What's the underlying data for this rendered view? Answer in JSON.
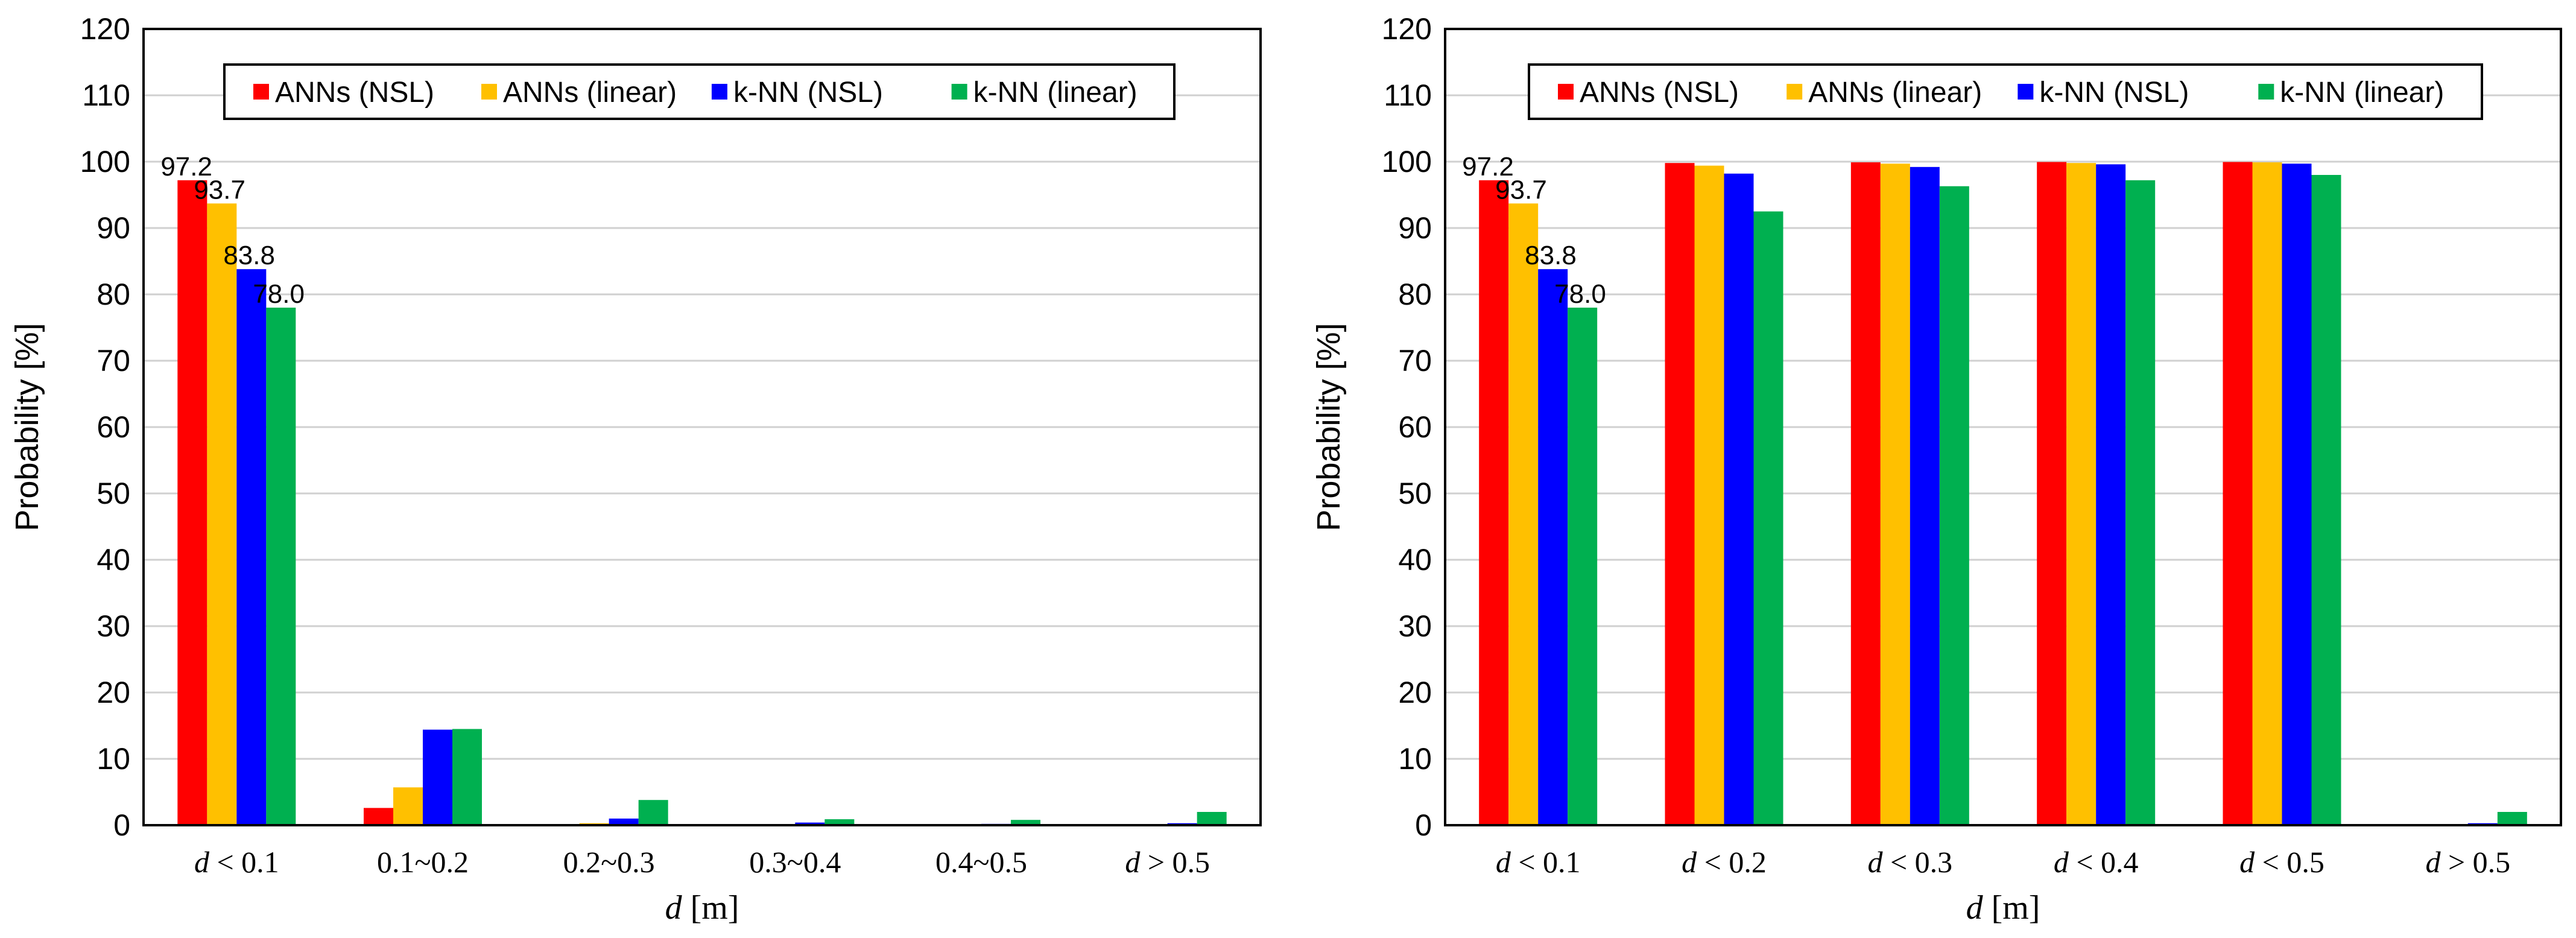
{
  "chart_data": [
    {
      "type": "bar",
      "title": "",
      "ylabel": "Probability [%]",
      "xlabel_var": "d",
      "xlabel_unit": " [m]",
      "ylim": [
        0,
        120
      ],
      "ytick_step": 10,
      "grid": true,
      "legend_position": "top-center",
      "categories": [
        "d < 0.1",
        "0.1~0.2",
        "0.2~0.3",
        "0.3~0.4",
        "0.4~0.5",
        "d > 0.5"
      ],
      "series": [
        {
          "name": "ANNs (NSL)",
          "color": "#ff0000",
          "values": [
            97.2,
            2.6,
            0.1,
            0.05,
            0.05,
            0.05
          ]
        },
        {
          "name": "ANNs (linear)",
          "color": "#ffc000",
          "values": [
            93.7,
            5.7,
            0.3,
            0.1,
            0.1,
            0.1
          ]
        },
        {
          "name": "k-NN (NSL)",
          "color": "#0000ff",
          "values": [
            83.8,
            14.4,
            1.0,
            0.4,
            0.2,
            0.3
          ]
        },
        {
          "name": "k-NN (linear)",
          "color": "#00b050",
          "values": [
            78.0,
            14.5,
            3.8,
            0.9,
            0.8,
            2.0
          ]
        }
      ],
      "data_labels": {
        "category_index": 0,
        "texts": [
          "97.2",
          "93.7",
          "83.8",
          "78.0"
        ]
      }
    },
    {
      "type": "bar",
      "title": "",
      "ylabel": "Probability [%]",
      "xlabel_var": "d",
      "xlabel_unit": " [m]",
      "ylim": [
        0,
        120
      ],
      "ytick_step": 10,
      "grid": true,
      "legend_position": "top-center",
      "categories": [
        "d < 0.1",
        "d < 0.2",
        "d < 0.3",
        "d < 0.4",
        "d < 0.5",
        "d > 0.5"
      ],
      "series": [
        {
          "name": "ANNs (NSL)",
          "color": "#ff0000",
          "values": [
            97.2,
            99.8,
            99.9,
            99.95,
            99.95,
            0.05
          ]
        },
        {
          "name": "ANNs (linear)",
          "color": "#ffc000",
          "values": [
            93.7,
            99.4,
            99.7,
            99.8,
            99.9,
            0.1
          ]
        },
        {
          "name": "k-NN (NSL)",
          "color": "#0000ff",
          "values": [
            83.8,
            98.2,
            99.2,
            99.6,
            99.7,
            0.3
          ]
        },
        {
          "name": "k-NN (linear)",
          "color": "#00b050",
          "values": [
            78.0,
            92.5,
            96.3,
            97.2,
            98.0,
            2.0
          ]
        }
      ],
      "data_labels": {
        "category_index": 0,
        "texts": [
          "97.2",
          "93.7",
          "83.8",
          "78.0"
        ]
      }
    }
  ]
}
